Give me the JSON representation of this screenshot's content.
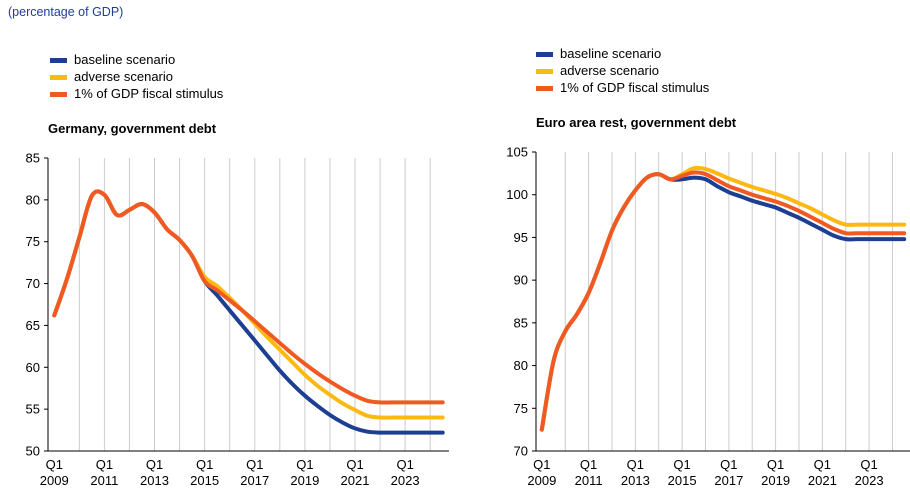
{
  "subtitle": "(percentage of GDP)",
  "colors": {
    "baseline": "#1c3f94",
    "adverse": "#fdb913",
    "stimulus": "#f05a22",
    "axis": "#000000",
    "gridline": "#cccccc"
  },
  "chart_data": [
    {
      "type": "line",
      "title": "Germany, government debt",
      "xlabel": "",
      "ylabel": "",
      "legend": "top-left",
      "grid": "vertical",
      "ylim": [
        50,
        85
      ],
      "yticks": [
        50,
        55,
        60,
        65,
        70,
        75,
        80,
        85
      ],
      "xtick_labels": [
        [
          "Q1",
          "2009"
        ],
        [
          "Q1",
          "2011"
        ],
        [
          "Q1",
          "2013"
        ],
        [
          "Q1",
          "2015"
        ],
        [
          "Q1",
          "2017"
        ],
        [
          "Q1",
          "2019"
        ],
        [
          "Q1",
          "2021"
        ],
        [
          "Q1",
          "2023"
        ]
      ],
      "x": [
        2009.0,
        2009.5,
        2010.0,
        2010.5,
        2011.0,
        2011.5,
        2012.0,
        2012.5,
        2013.0,
        2013.5,
        2014.0,
        2014.5,
        2015.0,
        2015.5,
        2016.0,
        2016.5,
        2017.0,
        2017.5,
        2018.0,
        2018.5,
        2019.0,
        2019.5,
        2020.0,
        2020.5,
        2021.0,
        2021.5,
        2022.0,
        2022.5,
        2023.0,
        2023.5,
        2024.0,
        2024.5
      ],
      "series": [
        {
          "name": "baseline scenario",
          "color_key": "baseline",
          "values": [
            66.2,
            70.5,
            75.5,
            80.5,
            80.6,
            78.2,
            78.8,
            79.5,
            78.5,
            76.5,
            75.2,
            73.3,
            70.3,
            68.6,
            66.8,
            65.0,
            63.2,
            61.4,
            59.6,
            58.0,
            56.6,
            55.4,
            54.3,
            53.4,
            52.7,
            52.3,
            52.2,
            52.2,
            52.2,
            52.2,
            52.2,
            52.2
          ]
        },
        {
          "name": "adverse scenario",
          "color_key": "adverse",
          "values": [
            66.2,
            70.5,
            75.5,
            80.5,
            80.6,
            78.2,
            78.8,
            79.5,
            78.5,
            76.5,
            75.2,
            73.3,
            70.8,
            69.7,
            68.3,
            66.8,
            65.2,
            63.6,
            62.1,
            60.6,
            59.1,
            57.8,
            56.7,
            55.7,
            54.9,
            54.2,
            54.0,
            54.0,
            54.0,
            54.0,
            54.0,
            54.0
          ]
        },
        {
          "name": "1% of GDP fiscal stimulus",
          "color_key": "stimulus",
          "values": [
            66.2,
            70.5,
            75.5,
            80.5,
            80.6,
            78.2,
            78.8,
            79.5,
            78.5,
            76.5,
            75.2,
            73.3,
            70.3,
            69.2,
            68.0,
            66.8,
            65.5,
            64.2,
            62.9,
            61.6,
            60.4,
            59.3,
            58.3,
            57.4,
            56.6,
            56.0,
            55.8,
            55.8,
            55.8,
            55.8,
            55.8,
            55.8
          ]
        }
      ]
    },
    {
      "type": "line",
      "title": "Euro area rest, government debt",
      "xlabel": "",
      "ylabel": "",
      "legend": "top-left",
      "grid": "vertical",
      "ylim": [
        70,
        105
      ],
      "yticks": [
        70,
        75,
        80,
        85,
        90,
        95,
        100,
        105
      ],
      "xtick_labels": [
        [
          "Q1",
          "2009"
        ],
        [
          "Q1",
          "2011"
        ],
        [
          "Q1",
          "2013"
        ],
        [
          "Q1",
          "2015"
        ],
        [
          "Q1",
          "2017"
        ],
        [
          "Q1",
          "2019"
        ],
        [
          "Q1",
          "2021"
        ],
        [
          "Q1",
          "2023"
        ]
      ],
      "x": [
        2009.0,
        2009.5,
        2010.0,
        2010.5,
        2011.0,
        2011.5,
        2012.0,
        2012.5,
        2013.0,
        2013.5,
        2014.0,
        2014.5,
        2015.0,
        2015.5,
        2016.0,
        2016.5,
        2017.0,
        2017.5,
        2018.0,
        2018.5,
        2019.0,
        2019.5,
        2020.0,
        2020.5,
        2021.0,
        2021.5,
        2022.0,
        2022.5,
        2023.0,
        2023.5,
        2024.0,
        2024.5
      ],
      "series": [
        {
          "name": "baseline scenario",
          "color_key": "baseline",
          "values": [
            72.5,
            80.5,
            84.0,
            86.0,
            88.5,
            92.0,
            95.8,
            98.5,
            100.5,
            102.0,
            102.4,
            101.8,
            101.8,
            102.0,
            101.8,
            101.0,
            100.3,
            99.8,
            99.3,
            98.9,
            98.5,
            97.9,
            97.3,
            96.6,
            95.9,
            95.2,
            94.8,
            94.8,
            94.8,
            94.8,
            94.8,
            94.8
          ]
        },
        {
          "name": "adverse scenario",
          "color_key": "adverse",
          "values": [
            72.5,
            80.5,
            84.0,
            86.0,
            88.5,
            92.0,
            95.8,
            98.5,
            100.5,
            102.0,
            102.4,
            101.8,
            102.4,
            103.1,
            103.0,
            102.5,
            101.9,
            101.4,
            100.9,
            100.5,
            100.1,
            99.6,
            99.0,
            98.4,
            97.7,
            97.0,
            96.5,
            96.5,
            96.5,
            96.5,
            96.5,
            96.5
          ]
        },
        {
          "name": "1% of GDP fiscal stimulus",
          "color_key": "stimulus",
          "values": [
            72.5,
            80.5,
            84.0,
            86.0,
            88.5,
            92.0,
            95.8,
            98.5,
            100.5,
            102.0,
            102.4,
            101.8,
            102.2,
            102.6,
            102.4,
            101.7,
            101.0,
            100.5,
            100.0,
            99.6,
            99.2,
            98.7,
            98.1,
            97.4,
            96.7,
            96.0,
            95.5,
            95.5,
            95.5,
            95.5,
            95.5,
            95.5
          ]
        }
      ]
    }
  ]
}
